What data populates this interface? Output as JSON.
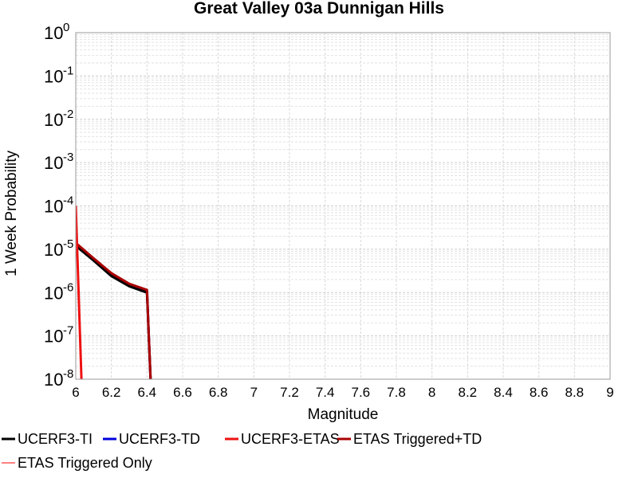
{
  "chart_data": {
    "type": "line",
    "title": "Great Valley 03a Dunnigan Hills",
    "xlabel": "Magnitude",
    "ylabel": "1 Week Probability",
    "xlim": [
      6,
      9
    ],
    "ylim": [
      1e-08,
      1
    ],
    "yscale": "log",
    "grid": true,
    "legend_position": "bottom",
    "x_ticks": [
      "6",
      "6.2",
      "6.4",
      "6.6",
      "6.8",
      "7",
      "7.2",
      "7.4",
      "7.6",
      "7.8",
      "8",
      "8.2",
      "8.4",
      "8.6",
      "8.8",
      "9"
    ],
    "y_ticks": [
      {
        "base": "10",
        "exp": "0",
        "value": 1
      },
      {
        "base": "10",
        "exp": "-1",
        "value": 0.1
      },
      {
        "base": "10",
        "exp": "-2",
        "value": 0.01
      },
      {
        "base": "10",
        "exp": "-3",
        "value": 0.001
      },
      {
        "base": "10",
        "exp": "-4",
        "value": 0.0001
      },
      {
        "base": "10",
        "exp": "-5",
        "value": 1e-05
      },
      {
        "base": "10",
        "exp": "-6",
        "value": 1e-06
      },
      {
        "base": "10",
        "exp": "-7",
        "value": 1e-07
      },
      {
        "base": "10",
        "exp": "-8",
        "value": 1e-08
      }
    ],
    "series": [
      {
        "name": "UCERF3-TI",
        "color": "#000000",
        "x": [
          6.0,
          6.1,
          6.2,
          6.3,
          6.4,
          6.43
        ],
        "y": [
          1.2e-05,
          5.5e-06,
          2.4e-06,
          1.4e-06,
          1e-06,
          1e-09
        ]
      },
      {
        "name": "UCERF3-TD",
        "color": "#0000dd",
        "x": [
          6.0,
          6.1,
          6.2,
          6.3,
          6.4,
          6.43
        ],
        "y": [
          1.3e-05,
          6e-06,
          2.6e-06,
          1.5e-06,
          1.1e-06,
          1e-09
        ]
      },
      {
        "name": "UCERF3-ETAS",
        "color": "#ee1111",
        "x": [
          6.0,
          6.04
        ],
        "y": [
          0.0001,
          1e-09
        ]
      },
      {
        "name": "ETAS Triggered+TD",
        "color": "#aa0000",
        "x": [
          6.0,
          6.1,
          6.2,
          6.3,
          6.4,
          6.43
        ],
        "y": [
          1.4e-05,
          6.2e-06,
          2.8e-06,
          1.6e-06,
          1.15e-06,
          1e-09
        ]
      },
      {
        "name": "ETAS Triggered Only",
        "color": "#ff8080",
        "x": [
          6.0,
          6.04
        ],
        "y": [
          0.0001,
          1e-09
        ]
      }
    ]
  }
}
